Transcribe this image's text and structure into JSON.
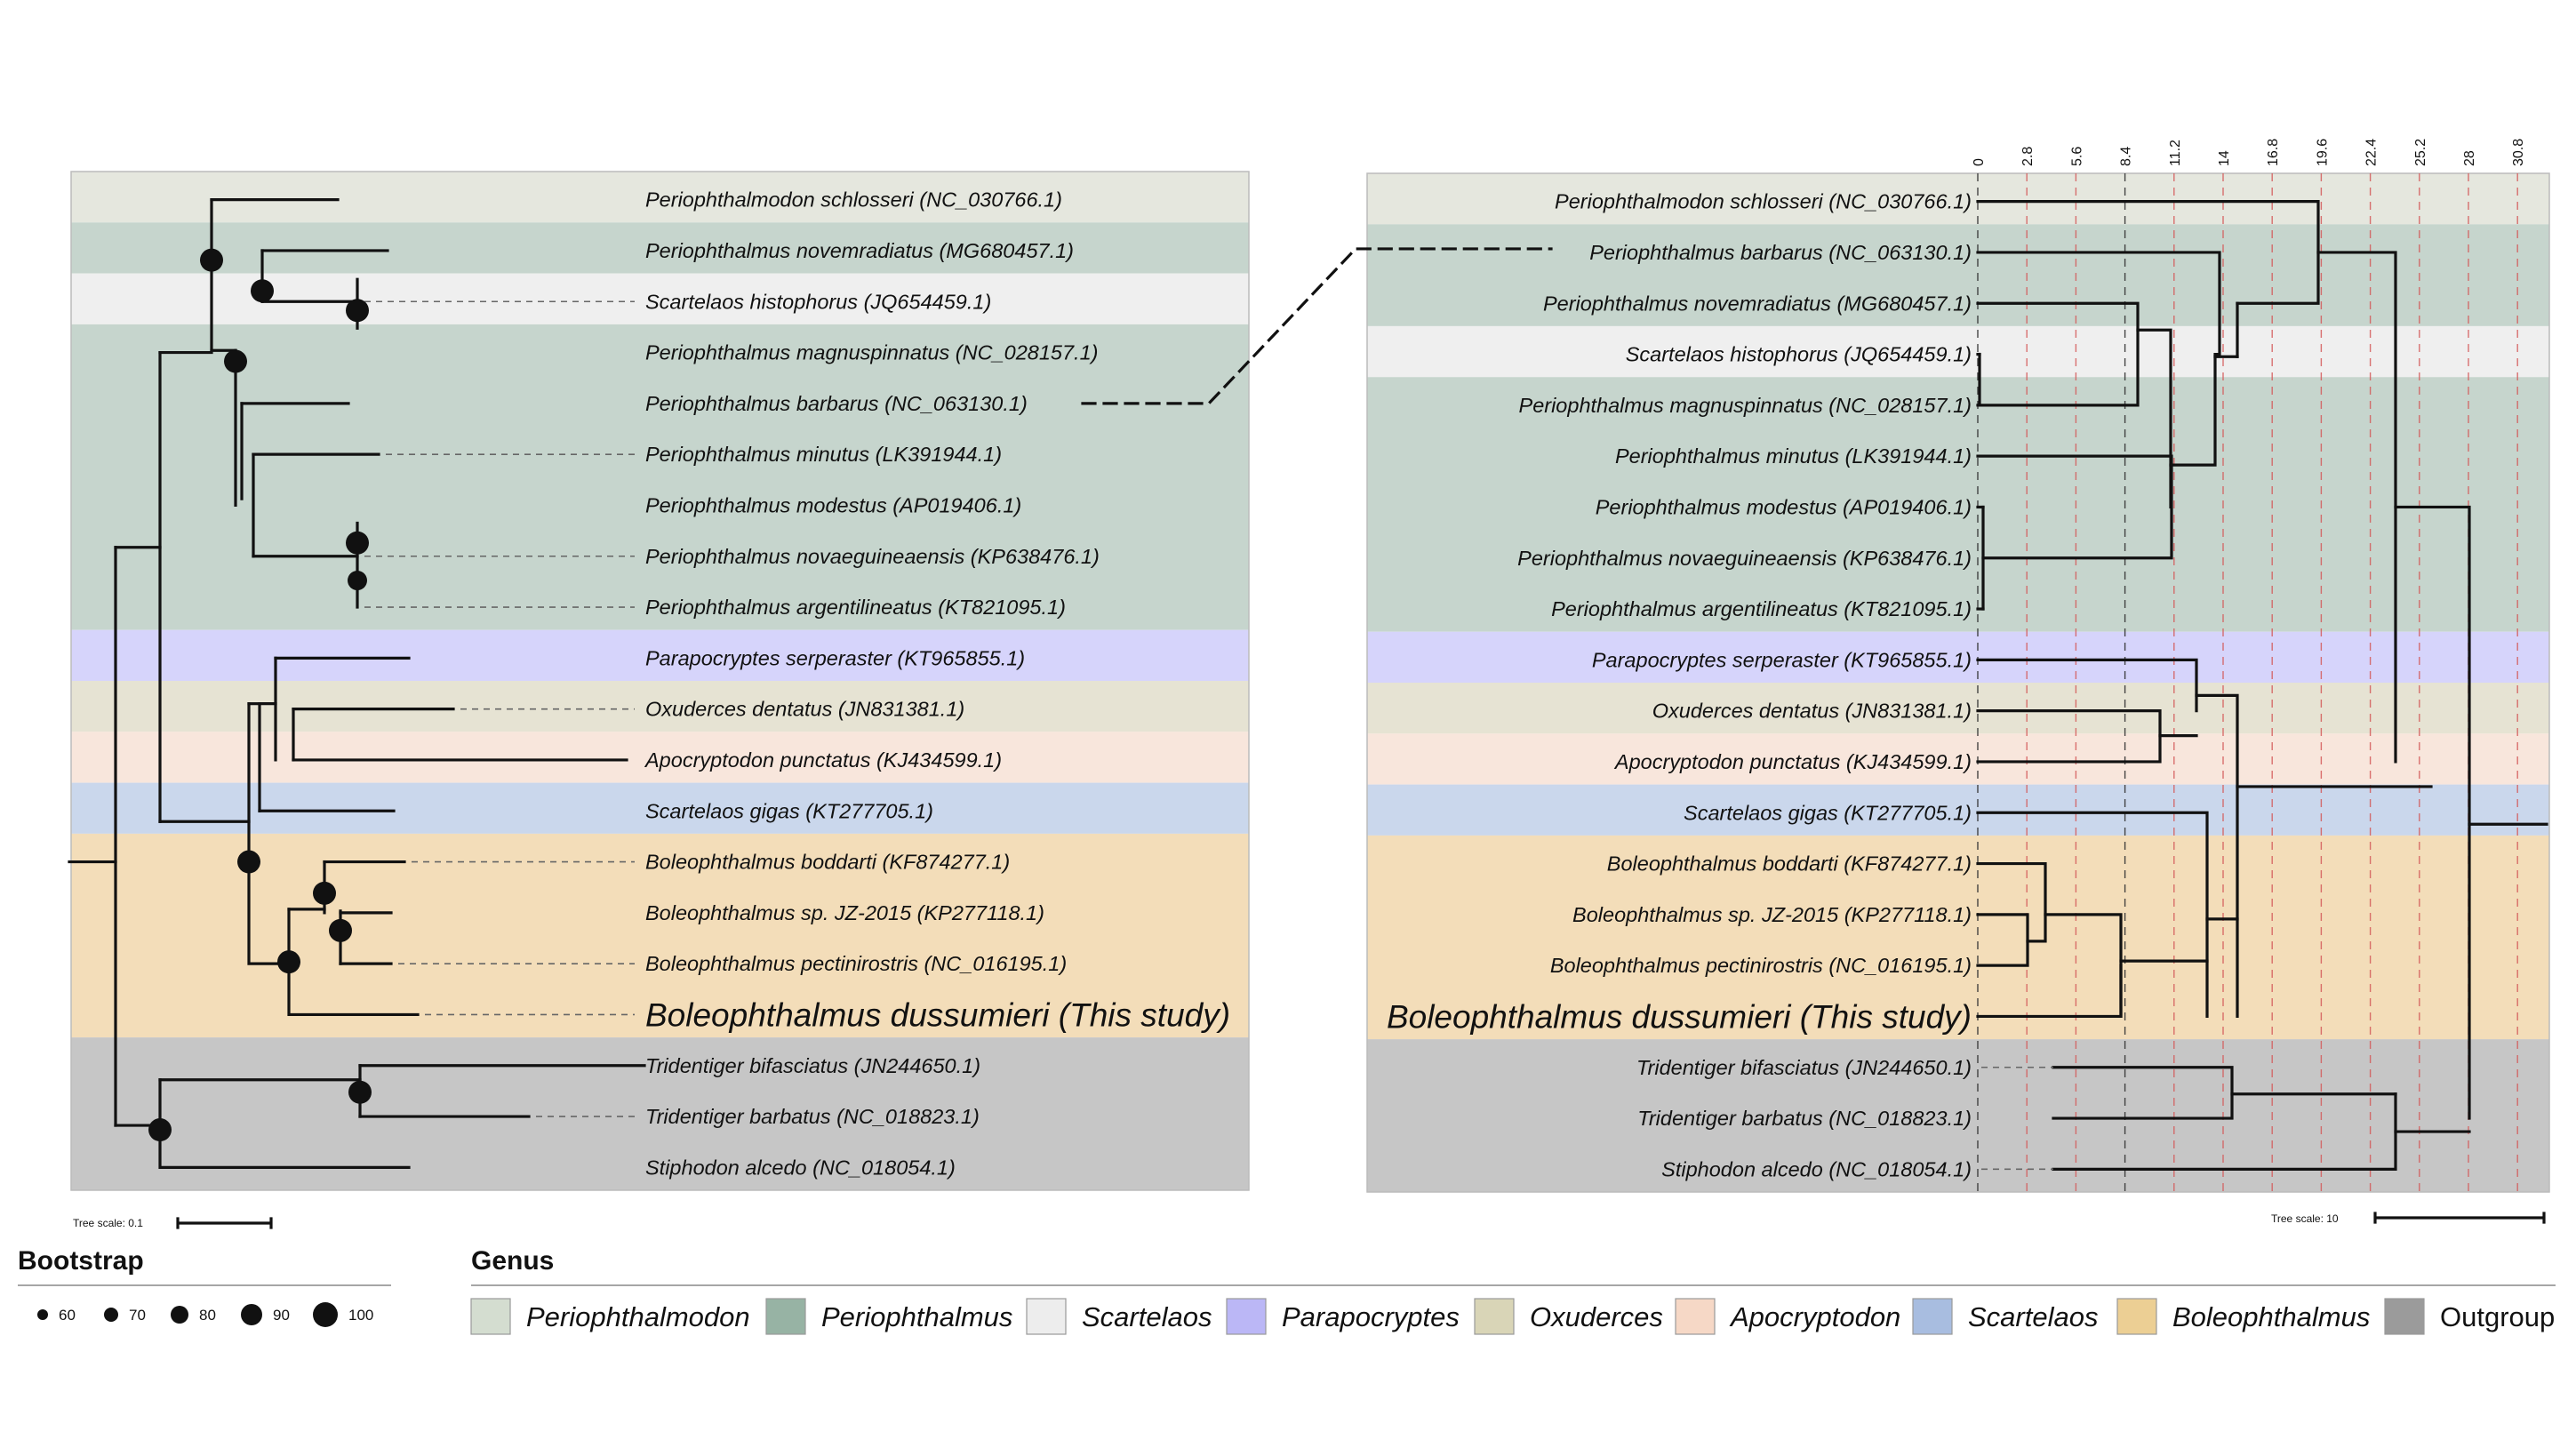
{
  "colors": {
    "periophthalmodon": "#e5e7de",
    "periophthalmus": "#c6d5cd",
    "scartelaos_a": "#efefef",
    "parapocryptes": "#d6d4fb",
    "oxuderces": "#e6e3d3",
    "apocryptodon": "#f8e6dc",
    "scartelaos_b": "#cad7ec",
    "boleophthalmus": "#f3ddb9",
    "outgroup": "#c6c6c6",
    "highlight": "#ef4232",
    "branch": "#111111"
  },
  "taxa": [
    {
      "label": "Periophthalmodon schlosseri (NC_030766.1)",
      "big": false
    },
    {
      "label": "Periophthalmus novemradiatus (MG680457.1)",
      "big": false
    },
    {
      "label": "Scartelaos histophorus (JQ654459.1)",
      "big": false
    },
    {
      "label": "Periophthalmus magnuspinnatus (NC_028157.1)",
      "big": false
    },
    {
      "label": "Periophthalmus barbarus (NC_063130.1)",
      "big": false
    },
    {
      "label": "Periophthalmus minutus (LK391944.1)",
      "big": false
    },
    {
      "label": "Periophthalmus modestus (AP019406.1)",
      "big": false
    },
    {
      "label": "Periophthalmus novaeguineaensis (KP638476.1)",
      "big": false
    },
    {
      "label": "Periophthalmus argentilineatus (KT821095.1)",
      "big": false
    },
    {
      "label": "Parapocryptes serperaster (KT965855.1)",
      "big": false
    },
    {
      "label": "Oxuderces dentatus (JN831381.1)",
      "big": false
    },
    {
      "label": "Apocryptodon punctatus (KJ434599.1)",
      "big": false
    },
    {
      "label": "Scartelaos gigas (KT277705.1)",
      "big": false
    },
    {
      "label": "Boleophthalmus boddarti (KF874277.1)",
      "big": false
    },
    {
      "label": "Boleophthalmus sp. JZ-2015 (KP277118.1)",
      "big": false
    },
    {
      "label": "Boleophthalmus pectinirostris (NC_016195.1)",
      "big": false
    },
    {
      "label": "Boleophthalmus dussumieri (This study)",
      "big": true
    },
    {
      "label": "Tridentiger bifasciatus (JN244650.1)",
      "big": false
    },
    {
      "label": "Tridentiger barbatus (NC_018823.1)",
      "big": false
    },
    {
      "label": "Stiphodon alcedo (NC_018054.1)",
      "big": false
    }
  ],
  "right_taxa": [
    {
      "label": "Periophthalmodon schlosseri (NC_030766.1)",
      "big": false
    },
    {
      "label": "Periophthalmus barbarus (NC_063130.1)",
      "big": false
    },
    {
      "label": "Periophthalmus novemradiatus (MG680457.1)",
      "big": false
    },
    {
      "label": "Scartelaos histophorus (JQ654459.1)",
      "big": false
    },
    {
      "label": "Periophthalmus magnuspinnatus (NC_028157.1)",
      "big": false
    },
    {
      "label": "Periophthalmus minutus (LK391944.1)",
      "big": false
    },
    {
      "label": "Periophthalmus modestus (AP019406.1)",
      "big": false
    },
    {
      "label": "Periophthalmus novaeguineaensis (KP638476.1)",
      "big": false
    },
    {
      "label": "Periophthalmus argentilineatus (KT821095.1)",
      "big": false
    },
    {
      "label": "Parapocryptes serperaster (KT965855.1)",
      "big": false
    },
    {
      "label": "Oxuderces dentatus (JN831381.1)",
      "big": false
    },
    {
      "label": "Apocryptodon punctatus (KJ434599.1)",
      "big": false
    },
    {
      "label": "Scartelaos gigas (KT277705.1)",
      "big": false
    },
    {
      "label": "Boleophthalmus boddarti (KF874277.1)",
      "big": false
    },
    {
      "label": "Boleophthalmus sp. JZ-2015 (KP277118.1)",
      "big": false
    },
    {
      "label": "Boleophthalmus pectinirostris (NC_016195.1)",
      "big": false
    },
    {
      "label": "Boleophthalmus dussumieri (This study)",
      "big": true
    },
    {
      "label": "Tridentiger bifasciatus (JN244650.1)",
      "big": false
    },
    {
      "label": "Tridentiger barbatus (NC_018823.1)",
      "big": false
    },
    {
      "label": "Stiphodon alcedo (NC_018054.1)",
      "big": false
    }
  ],
  "time_ticks": [
    "0",
    "2.8",
    "5.6",
    "8.4",
    "11.2",
    "14",
    "16.8",
    "19.6",
    "22.4",
    "25.2",
    "28",
    "30.8"
  ],
  "tree_scale_left": "Tree scale: 0.1",
  "tree_scale_right": "Tree scale: 10",
  "bootstrap": {
    "title": "Bootstrap",
    "values": [
      "60",
      "70",
      "80",
      "90",
      "100"
    ]
  },
  "genus": {
    "title": "Genus",
    "items": [
      {
        "label": "Periophthalmodon",
        "italic": true,
        "color": "#d4ddd0"
      },
      {
        "label": "Periophthalmus",
        "italic": true,
        "color": "#97b3a4"
      },
      {
        "label": "Scartelaos",
        "italic": true,
        "color": "#ededed"
      },
      {
        "label": "Parapocryptes",
        "italic": true,
        "color": "#bbb7f6"
      },
      {
        "label": "Oxuderces",
        "italic": true,
        "color": "#d9d5b7"
      },
      {
        "label": "Apocryptodon",
        "italic": true,
        "color": "#f6d8c6"
      },
      {
        "label": "Scartelaos",
        "italic": true,
        "color": "#a8bde0"
      },
      {
        "label": "Boleophthalmus",
        "italic": true,
        "color": "#eccf94"
      },
      {
        "label": "Outgroup",
        "italic": false,
        "color": "#9b9b9b"
      }
    ]
  }
}
